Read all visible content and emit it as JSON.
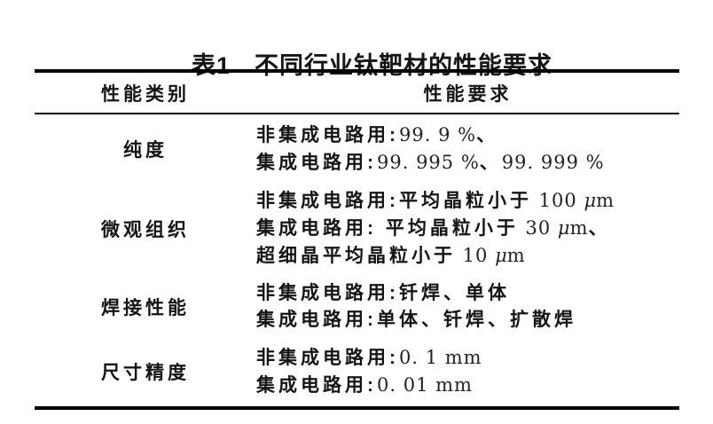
{
  "colors": {
    "background": "#ffffff",
    "text": "#151515",
    "rule": "#000000"
  },
  "title": {
    "label": "表1",
    "text": "不同行业钛靶材的性能要求"
  },
  "table": {
    "headers": [
      "性能类别",
      "性能要求"
    ],
    "rows": [
      {
        "category": "纯度",
        "lines": [
          [
            {
              "kind": "cjk",
              "text": "非集成电路用:"
            },
            {
              "kind": "num",
              "text": "99. 9 %"
            },
            {
              "kind": "cjk",
              "text": "、"
            }
          ],
          [
            {
              "kind": "cjk",
              "text": "集成电路用:"
            },
            {
              "kind": "num",
              "text": "99. 995 %"
            },
            {
              "kind": "cjk",
              "text": "、"
            },
            {
              "kind": "num",
              "text": "99. 999 %"
            }
          ]
        ]
      },
      {
        "category": "微观组织",
        "lines": [
          [
            {
              "kind": "cjk",
              "text": "非集成电路用:平均晶粒小于"
            },
            {
              "kind": "num",
              "text": " 100 "
            },
            {
              "kind": "mu",
              "text": "μ"
            },
            {
              "kind": "num",
              "text": "m"
            }
          ],
          [
            {
              "kind": "cjk",
              "text": "集成电路用: 平均晶粒小于"
            },
            {
              "kind": "num",
              "text": " 30 "
            },
            {
              "kind": "mu",
              "text": "μ"
            },
            {
              "kind": "num",
              "text": "m"
            },
            {
              "kind": "cjk",
              "text": "、"
            }
          ],
          [
            {
              "kind": "cjk",
              "text": "超细晶平均晶粒小于"
            },
            {
              "kind": "num",
              "text": " 10 "
            },
            {
              "kind": "mu",
              "text": "μ"
            },
            {
              "kind": "num",
              "text": "m"
            }
          ]
        ]
      },
      {
        "category": "焊接性能",
        "lines": [
          [
            {
              "kind": "cjk",
              "text": "非集成电路用:钎焊、单体"
            }
          ],
          [
            {
              "kind": "cjk",
              "text": "集成电路用:单体、钎焊、扩散焊"
            }
          ]
        ]
      },
      {
        "category": "尺寸精度",
        "lines": [
          [
            {
              "kind": "cjk",
              "text": "非集成电路用:"
            },
            {
              "kind": "num",
              "text": "0. 1 mm"
            }
          ],
          [
            {
              "kind": "cjk",
              "text": "集成电路用:"
            },
            {
              "kind": "num",
              "text": "0. 01 mm"
            }
          ]
        ]
      }
    ]
  }
}
